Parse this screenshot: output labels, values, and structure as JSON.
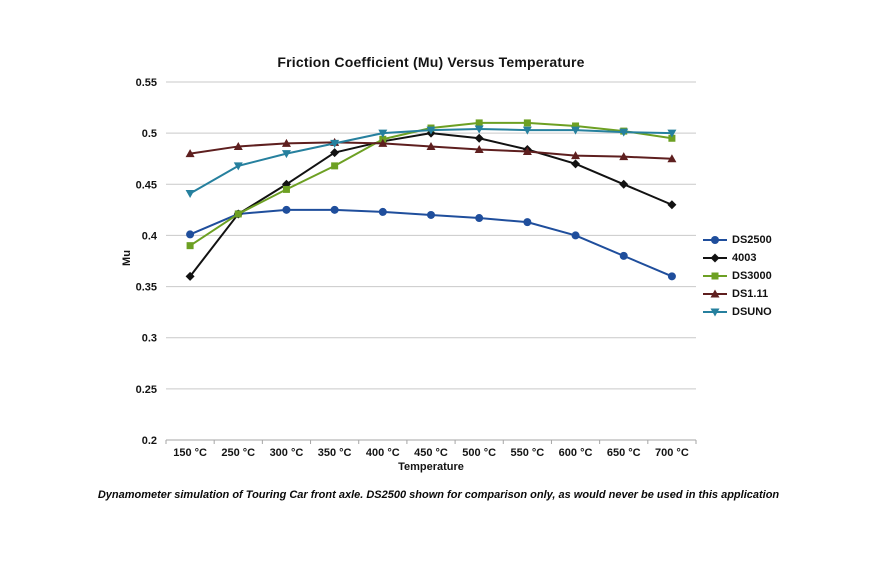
{
  "page": {
    "background": "#ffffff"
  },
  "chart_data": {
    "type": "line",
    "title": "Friction Coefficient (Mu) Versus Temperature",
    "xlabel": "Temperature",
    "ylabel": "Mu",
    "categories": [
      "150 °C",
      "250 °C",
      "300 °C",
      "350 °C",
      "400 °C",
      "450 °C",
      "500 °C",
      "550 °C",
      "600 °C",
      "650 °C",
      "700 °C"
    ],
    "y_tick_labels": [
      "0.2",
      "0.25",
      "0.3",
      "0.35",
      "0.4",
      "0.45",
      "0.5",
      "0.55"
    ],
    "y_tick_values": [
      0.2,
      0.25,
      0.3,
      0.35,
      0.4,
      0.45,
      0.5,
      0.55
    ],
    "ylim": [
      0.2,
      0.55
    ],
    "grid": true,
    "legend_position": "right",
    "series": [
      {
        "name": "DS2500",
        "color": "#1f4e9c",
        "marker": "circle",
        "values": [
          0.401,
          0.421,
          0.425,
          0.425,
          0.423,
          0.42,
          0.417,
          0.413,
          0.4,
          0.38,
          0.36
        ]
      },
      {
        "name": "4003",
        "color": "#121212",
        "marker": "diamond",
        "values": [
          0.36,
          0.421,
          0.45,
          0.481,
          0.492,
          0.5,
          0.495,
          0.484,
          0.47,
          0.45,
          0.43
        ]
      },
      {
        "name": "DS3000",
        "color": "#6da023",
        "marker": "square",
        "values": [
          0.39,
          0.421,
          0.445,
          0.468,
          0.494,
          0.505,
          0.51,
          0.51,
          0.507,
          0.502,
          0.495
        ]
      },
      {
        "name": "DS1.11",
        "color": "#5e1f1f",
        "marker": "triangle-up",
        "values": [
          0.48,
          0.487,
          0.49,
          0.491,
          0.49,
          0.487,
          0.484,
          0.482,
          0.478,
          0.477,
          0.475
        ]
      },
      {
        "name": "DSUNO",
        "color": "#26809e",
        "marker": "triangle-down",
        "values": [
          0.441,
          0.468,
          0.48,
          0.49,
          0.5,
          0.503,
          0.504,
          0.503,
          0.503,
          0.501,
          0.5
        ]
      }
    ]
  },
  "caption": "Dynamometer simulation of Touring Car front axle. DS2500 shown for comparison only, as would never be used in this application",
  "style_colors": {
    "gridline": "#c9c9c9",
    "axis_line": "#a6a6a6",
    "tick_text": "#141414"
  }
}
